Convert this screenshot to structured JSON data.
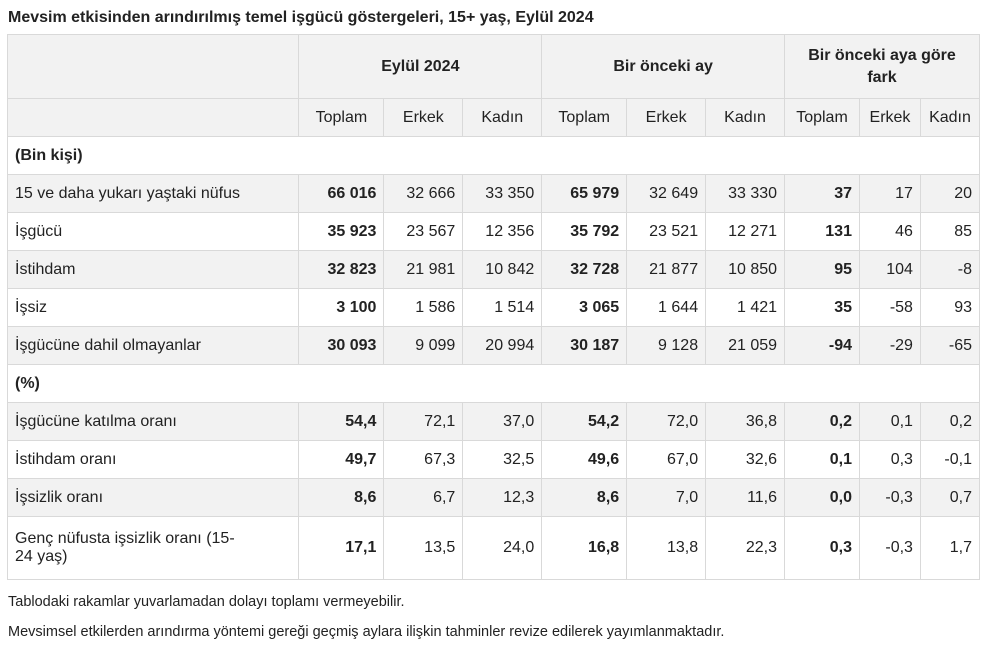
{
  "title": "Mevsim etkisinden arındırılmış temel işgücü göstergeleri, 15+ yaş, Eylül 2024",
  "header": {
    "groups": [
      "Eylül 2024",
      "Bir önceki ay",
      "Bir önceki aya göre fark"
    ],
    "subheaders": [
      "Toplam",
      "Erkek",
      "Kadın",
      "Toplam",
      "Erkek",
      "Kadın",
      "Toplam",
      "Erkek",
      "Kadın"
    ]
  },
  "sections": [
    {
      "label": "(Bin kişi)",
      "rows": [
        {
          "label": "15 ve daha yukarı yaştaki nüfus",
          "values": [
            "66 016",
            "32 666",
            "33 350",
            "65 979",
            "32 649",
            "33 330",
            "37",
            "17",
            "20"
          ]
        },
        {
          "label": "İşgücü",
          "values": [
            "35 923",
            "23 567",
            "12 356",
            "35 792",
            "23 521",
            "12 271",
            "131",
            "46",
            "85"
          ]
        },
        {
          "label": "İstihdam",
          "values": [
            "32 823",
            "21 981",
            "10 842",
            "32 728",
            "21 877",
            "10 850",
            "95",
            "104",
            "-8"
          ]
        },
        {
          "label": "İşsiz",
          "values": [
            "3 100",
            "1 586",
            "1 514",
            "3 065",
            "1 644",
            "1 421",
            "35",
            "-58",
            "93"
          ]
        },
        {
          "label": "İşgücüne dahil olmayanlar",
          "values": [
            "30 093",
            "9 099",
            "20 994",
            "30 187",
            "9 128",
            "21 059",
            "-94",
            "-29",
            "-65"
          ]
        }
      ]
    },
    {
      "label": "(%)",
      "rows": [
        {
          "label": "İşgücüne katılma oranı",
          "values": [
            "54,4",
            "72,1",
            "37,0",
            "54,2",
            "72,0",
            "36,8",
            "0,2",
            "0,1",
            "0,2"
          ]
        },
        {
          "label": "İstihdam oranı",
          "values": [
            "49,7",
            "67,3",
            "32,5",
            "49,6",
            "67,0",
            "32,6",
            "0,1",
            "0,3",
            "-0,1"
          ]
        },
        {
          "label": "İşsizlik oranı",
          "values": [
            "8,6",
            "6,7",
            "12,3",
            "8,6",
            "7,0",
            "11,6",
            "0,0",
            "-0,3",
            "0,7"
          ]
        },
        {
          "label": "Genç nüfusta işsizlik oranı (15-24 yaş)",
          "values": [
            "17,1",
            "13,5",
            "24,0",
            "16,8",
            "13,8",
            "22,3",
            "0,3",
            "-0,3",
            "1,7"
          ]
        }
      ]
    }
  ],
  "notes": [
    "Tablodaki rakamlar yuvarlamadan dolayı toplamı vermeyebilir.",
    "Mevsimsel etkilerden arındırma yöntemi gereği geçmiş aylara ilişkin tahminler revize edilerek yayımlanmaktadır."
  ]
}
